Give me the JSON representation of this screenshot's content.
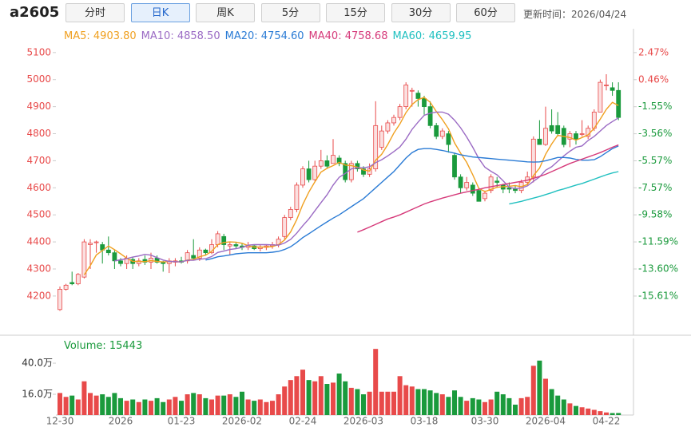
{
  "header": {
    "symbol": "a2605",
    "buttons": [
      "分时",
      "日K",
      "周K",
      "5分",
      "15分",
      "30分",
      "60分"
    ],
    "active": 1,
    "updated": "更新时间：2026/04/24"
  },
  "chart_data": {
    "type": "candlestick",
    "categories": [
      "12-30",
      null,
      null,
      null,
      null,
      null,
      null,
      null,
      null,
      null,
      "2026",
      null,
      null,
      null,
      null,
      null,
      null,
      null,
      null,
      null,
      "01-23",
      null,
      null,
      null,
      null,
      null,
      null,
      null,
      null,
      null,
      "2026-02",
      null,
      null,
      null,
      null,
      null,
      null,
      null,
      null,
      null,
      "02-24",
      null,
      null,
      null,
      null,
      null,
      null,
      null,
      null,
      null,
      "2026-03",
      null,
      null,
      null,
      null,
      null,
      null,
      null,
      null,
      null,
      "03-18",
      null,
      null,
      null,
      null,
      null,
      null,
      null,
      null,
      null,
      "03-30",
      null,
      null,
      null,
      null,
      null,
      null,
      null,
      null,
      null,
      "2026-04",
      null,
      null,
      null,
      null,
      null,
      null,
      null,
      null,
      null,
      "04-22",
      null,
      null
    ],
    "ohlc": {
      "open": [
        4150,
        4225,
        4250,
        4245,
        4270,
        4390,
        4400,
        4390,
        4370,
        4360,
        4330,
        4320,
        4335,
        4320,
        4335,
        4325,
        4340,
        4325,
        4320,
        4325,
        4330,
        4330,
        4350,
        4340,
        4370,
        4360,
        4390,
        4420,
        4385,
        4390,
        4385,
        4380,
        4385,
        4375,
        4380,
        4385,
        4390,
        4420,
        4490,
        4520,
        4610,
        4670,
        4630,
        4680,
        4700,
        4690,
        4710,
        4690,
        4630,
        4690,
        4670,
        4650,
        4670,
        4750,
        4810,
        4840,
        4860,
        4900,
        4960,
        4950,
        4930,
        4900,
        4830,
        4790,
        4800,
        4720,
        4640,
        4600,
        4610,
        4590,
        4560,
        4590,
        4625,
        4610,
        4600,
        4595,
        4590,
        4620,
        4640,
        4780,
        4760,
        4830,
        4830,
        4820,
        4780,
        4800,
        4800,
        4790,
        4820,
        4880,
        4980,
        4970,
        4960
      ],
      "high": [
        4235,
        4245,
        4290,
        4285,
        4410,
        4410,
        4405,
        4400,
        4420,
        4370,
        4340,
        4350,
        4345,
        4340,
        4350,
        4360,
        4350,
        4330,
        4340,
        4340,
        4345,
        4370,
        4410,
        4380,
        4375,
        4410,
        4440,
        4430,
        4400,
        4400,
        4395,
        4400,
        4390,
        4390,
        4390,
        4400,
        4420,
        4500,
        4530,
        4620,
        4680,
        4700,
        4700,
        4740,
        4720,
        4780,
        4720,
        4700,
        4700,
        4700,
        4680,
        4690,
        4920,
        4830,
        4850,
        4870,
        4910,
        4990,
        4970,
        4960,
        4940,
        4920,
        4840,
        4820,
        4810,
        4730,
        4650,
        4640,
        4620,
        4600,
        4590,
        4650,
        4640,
        4615,
        4620,
        4610,
        4630,
        4660,
        4790,
        4850,
        4900,
        4890,
        4880,
        4830,
        4810,
        4810,
        4850,
        4830,
        4890,
        5000,
        5020,
        4990,
        4990
      ],
      "low": [
        4145,
        4220,
        4240,
        4240,
        4265,
        4300,
        4360,
        4320,
        4350,
        4300,
        4310,
        4300,
        4300,
        4310,
        4315,
        4300,
        4320,
        4290,
        4285,
        4310,
        4320,
        4320,
        4335,
        4330,
        4350,
        4355,
        4380,
        4370,
        4350,
        4375,
        4370,
        4370,
        4370,
        4365,
        4370,
        4375,
        4380,
        4410,
        4480,
        4510,
        4600,
        4620,
        4625,
        4670,
        4670,
        4690,
        4680,
        4620,
        4620,
        4660,
        4640,
        4640,
        4660,
        4740,
        4800,
        4830,
        4850,
        4890,
        4900,
        4900,
        4870,
        4820,
        4780,
        4780,
        4730,
        4630,
        4580,
        4590,
        4570,
        4550,
        4550,
        4580,
        4600,
        4580,
        4580,
        4580,
        4580,
        4610,
        4620,
        4760,
        4755,
        4800,
        4790,
        4750,
        4750,
        4760,
        4790,
        4780,
        4810,
        4880,
        4960,
        4940,
        4850
      ],
      "close": [
        4225,
        4240,
        4245,
        4280,
        4400,
        4395,
        4400,
        4370,
        4360,
        4330,
        4320,
        4340,
        4320,
        4330,
        4325,
        4340,
        4325,
        4320,
        4330,
        4330,
        4325,
        4360,
        4340,
        4370,
        4360,
        4390,
        4430,
        4390,
        4390,
        4385,
        4380,
        4385,
        4375,
        4380,
        4385,
        4390,
        4410,
        4490,
        4520,
        4610,
        4670,
        4630,
        4680,
        4700,
        4680,
        4720,
        4690,
        4630,
        4690,
        4670,
        4650,
        4670,
        4830,
        4810,
        4840,
        4860,
        4900,
        4980,
        4960,
        4930,
        4900,
        4830,
        4790,
        4810,
        4760,
        4640,
        4600,
        4620,
        4580,
        4550,
        4580,
        4640,
        4620,
        4595,
        4595,
        4590,
        4620,
        4640,
        4780,
        4760,
        4820,
        4810,
        4800,
        4760,
        4800,
        4780,
        4800,
        4820,
        4880,
        4990,
        4980,
        4960,
        4860
      ]
    },
    "up_color": "#e84a4a",
    "down_color": "#1a9a3c",
    "series": [
      {
        "name": "MA5",
        "legend_label": "4903.80",
        "color": "#f0a020",
        "values": [
          null,
          null,
          null,
          null,
          4278,
          4312,
          4352,
          4368,
          4385,
          4371,
          4356,
          4340,
          4328,
          4328,
          4327,
          4331,
          4328,
          4326,
          4328,
          4327,
          4326,
          4333,
          4335,
          4345,
          4351,
          4365,
          4390,
          4398,
          4400,
          4399,
          4395,
          4386,
          4381,
          4381,
          4381,
          4383,
          4390,
          4407,
          4437,
          4482,
          4538,
          4584,
          4622,
          4658,
          4672,
          4682,
          4694,
          4684,
          4682,
          4676,
          4666,
          4662,
          4702,
          4724,
          4760,
          4802,
          4836,
          4878,
          4908,
          4926,
          4934,
          4916,
          4882,
          4852,
          4818,
          4766,
          4728,
          4694,
          4648,
          4598,
          4586,
          4594,
          4602,
          4604,
          4606,
          4608,
          4604,
          4612,
          4645,
          4673,
          4724,
          4762,
          4794,
          4790,
          4786,
          4776,
          4786,
          4796,
          4820,
          4854,
          4890,
          4916,
          4903.8
        ]
      },
      {
        "name": "MA10",
        "legend_label": "4858.50",
        "color": "#9b6bc4",
        "values": [
          null,
          null,
          null,
          null,
          null,
          null,
          null,
          null,
          null,
          4330,
          4334,
          4338,
          4344,
          4348,
          4354,
          4351,
          4342,
          4333,
          4328,
          4327,
          4326,
          4332,
          4332,
          4336,
          4338,
          4346,
          4361,
          4366,
          4372,
          4375,
          4380,
          4388,
          4390,
          4390,
          4390,
          4389,
          4388,
          4396,
          4409,
          4432,
          4460,
          4485,
          4515,
          4545,
          4574,
          4610,
          4639,
          4653,
          4670,
          4674,
          4674,
          4678,
          4693,
          4704,
          4718,
          4734,
          4751,
          4780,
          4816,
          4843,
          4868,
          4876,
          4880,
          4880,
          4872,
          4850,
          4822,
          4788,
          4750,
          4708,
          4676,
          4661,
          4648,
          4626,
          4602,
          4597,
          4599,
          4607,
          4624,
          4640,
          4665,
          4678,
          4698,
          4718,
          4735,
          4750,
          4755,
          4775,
          4790,
          4810,
          4830,
          4845,
          4858.5
        ]
      },
      {
        "name": "MA20",
        "legend_label": "4754.60",
        "color": "#2a7bd5",
        "values": [
          null,
          null,
          null,
          null,
          null,
          null,
          null,
          null,
          null,
          null,
          null,
          null,
          null,
          null,
          null,
          null,
          null,
          null,
          null,
          null,
          null,
          null,
          null,
          null,
          4333,
          4338,
          4345,
          4348,
          4352,
          4356,
          4358,
          4360,
          4360,
          4360,
          4360,
          4362,
          4365,
          4372,
          4382,
          4398,
          4416,
          4430,
          4445,
          4460,
          4474,
          4488,
          4500,
          4515,
          4530,
          4545,
          4560,
          4580,
          4600,
          4620,
          4640,
          4660,
          4685,
          4710,
          4730,
          4742,
          4745,
          4745,
          4742,
          4738,
          4733,
          4728,
          4722,
          4718,
          4714,
          4712,
          4710,
          4708,
          4706,
          4704,
          4702,
          4700,
          4698,
          4696,
          4695,
          4696,
          4700,
          4706,
          4712,
          4712,
          4710,
          4705,
          4702,
          4702,
          4704,
          4715,
          4730,
          4745,
          4754.6
        ]
      },
      {
        "name": "MA40",
        "legend_label": "4758.68",
        "color": "#d63a7a",
        "values": [
          null,
          null,
          null,
          null,
          null,
          null,
          null,
          null,
          null,
          null,
          null,
          null,
          null,
          null,
          null,
          null,
          null,
          null,
          null,
          null,
          null,
          null,
          null,
          null,
          null,
          null,
          null,
          null,
          null,
          null,
          null,
          null,
          null,
          null,
          null,
          null,
          null,
          null,
          null,
          null,
          null,
          null,
          null,
          null,
          null,
          null,
          null,
          null,
          null,
          4436,
          4445,
          4455,
          4465,
          4475,
          4485,
          4492,
          4500,
          4510,
          4520,
          4530,
          4540,
          4548,
          4555,
          4562,
          4568,
          4574,
          4580,
          4585,
          4590,
          4594,
          4600,
          4604,
          4608,
          4612,
          4616,
          4620,
          4624,
          4628,
          4635,
          4642,
          4650,
          4660,
          4670,
          4680,
          4690,
          4698,
          4706,
          4714,
          4722,
          4730,
          4740,
          4750,
          4758.68
        ]
      },
      {
        "name": "MA60",
        "legend_label": "4659.95",
        "color": "#20c0c0",
        "values": [
          null,
          null,
          null,
          null,
          null,
          null,
          null,
          null,
          null,
          null,
          null,
          null,
          null,
          null,
          null,
          null,
          null,
          null,
          null,
          null,
          null,
          null,
          null,
          null,
          null,
          null,
          null,
          null,
          null,
          null,
          null,
          null,
          null,
          null,
          null,
          null,
          null,
          null,
          null,
          null,
          null,
          null,
          null,
          null,
          null,
          null,
          null,
          null,
          null,
          null,
          null,
          null,
          null,
          null,
          null,
          null,
          null,
          null,
          null,
          null,
          null,
          null,
          null,
          null,
          null,
          null,
          null,
          null,
          null,
          null,
          null,
          null,
          null,
          null,
          4540,
          4545,
          4550,
          4556,
          4562,
          4568,
          4575,
          4582,
          4590,
          4596,
          4603,
          4610,
          4616,
          4624,
          4632,
          4640,
          4648,
          4655,
          4659.95
        ]
      }
    ],
    "ylim": [
      4061,
      5188
    ],
    "yticks": [
      4200,
      4300,
      4400,
      4500,
      4600,
      4700,
      4800,
      4900,
      5000,
      5100
    ],
    "y2lim": [
      -18.4,
      4.24
    ],
    "y2ticks": [
      {
        "value": 2.47,
        "label": "2.47%"
      },
      {
        "value": 0.46,
        "label": "0.46%"
      },
      {
        "value": -1.55,
        "label": "-1.55%"
      },
      {
        "value": -3.56,
        "label": "-3.56%"
      },
      {
        "value": -5.57,
        "label": "-5.57%"
      },
      {
        "value": -7.57,
        "label": "-7.57%"
      },
      {
        "value": -9.58,
        "label": "-9.58%"
      },
      {
        "value": -11.59,
        "label": "-11.59%"
      },
      {
        "value": -13.6,
        "label": "-13.60%"
      },
      {
        "value": -15.61,
        "label": "-15.61%"
      }
    ],
    "grid": false,
    "volume": {
      "label": "Volume: 15443",
      "values": [
        17,
        14,
        15,
        12,
        26,
        17,
        15,
        16,
        14,
        17,
        13,
        11,
        12,
        10,
        12,
        11,
        13,
        10,
        12,
        14,
        11,
        16,
        17,
        16,
        13,
        12,
        15,
        15,
        16,
        14,
        18,
        12,
        11,
        12,
        10,
        11,
        16,
        22,
        27,
        30,
        35,
        27,
        26,
        30,
        24,
        25,
        32,
        26,
        21,
        20,
        16,
        18,
        51,
        18,
        18,
        18,
        30,
        23,
        22,
        20,
        20,
        19,
        17,
        16,
        14,
        19,
        14,
        11,
        13,
        12,
        10,
        12,
        18,
        16,
        13,
        8,
        13,
        14,
        38,
        42,
        28,
        20,
        15,
        12,
        9,
        7,
        6,
        5,
        4,
        3,
        2,
        1.5,
        1.5443
      ],
      "ylim": [
        0,
        58.5
      ],
      "yticks": [
        {
          "value": 16,
          "label": "16.0万"
        },
        {
          "value": 40,
          "label": "40.0万"
        }
      ]
    }
  }
}
